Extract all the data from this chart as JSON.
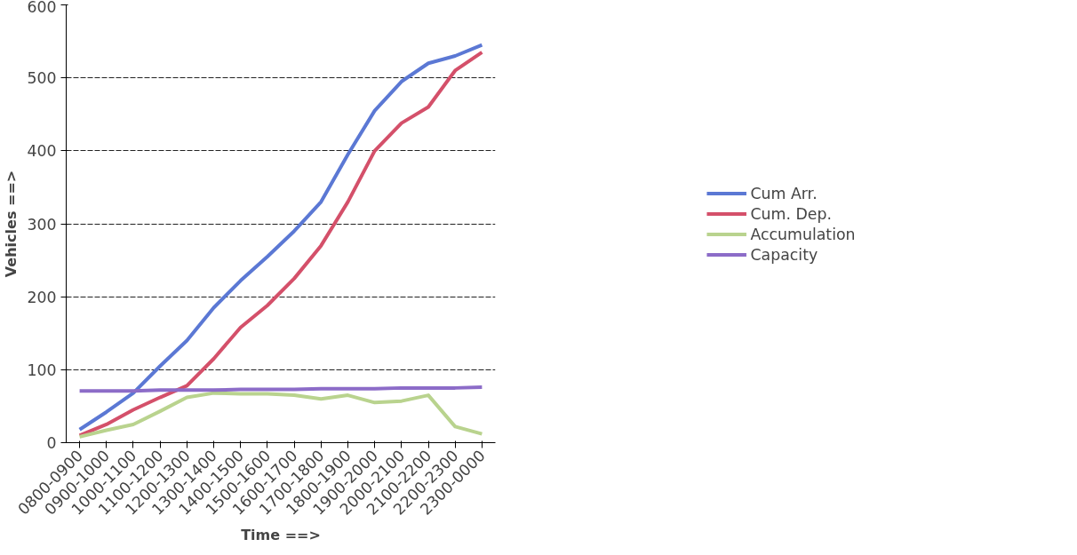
{
  "chart_data": {
    "type": "line",
    "xlabel": "Time ==>",
    "ylabel": "Vehicles ==>",
    "categories": [
      "0800-0900",
      "0900-1000",
      "1000-1100",
      "1100-1200",
      "1200-1300",
      "1300-1400",
      "1400-1500",
      "1500-1600",
      "1600-1700",
      "1700-1800",
      "1800-1900",
      "1900-2000",
      "2000-2100",
      "2100-2200",
      "2200-2300",
      "2300-0000"
    ],
    "series": [
      {
        "name": "Cum Arr.",
        "color": "#5b78d4",
        "values": [
          18,
          42,
          68,
          105,
          140,
          185,
          222,
          255,
          290,
          330,
          395,
          455,
          495,
          520,
          530,
          545
        ]
      },
      {
        "name": "Cum. Dep.",
        "color": "#d4506a",
        "values": [
          10,
          25,
          45,
          62,
          78,
          115,
          158,
          188,
          225,
          270,
          330,
          400,
          438,
          460,
          510,
          535
        ]
      },
      {
        "name": "Accumulation",
        "color": "#b9d38e",
        "values": [
          8,
          17,
          25,
          43,
          62,
          68,
          67,
          67,
          65,
          60,
          65,
          55,
          57,
          65,
          22,
          12
        ]
      },
      {
        "name": "Capacity",
        "color": "#8c6cc8",
        "values": [
          71,
          71,
          71,
          72,
          72,
          72,
          73,
          73,
          73,
          74,
          74,
          74,
          75,
          75,
          75,
          76
        ]
      }
    ],
    "ylim": [
      0,
      600
    ],
    "yticks": [
      0,
      100,
      200,
      300,
      400,
      500,
      600
    ],
    "grid": "y",
    "legend": "right",
    "marker": "none",
    "line_style": "solid"
  }
}
